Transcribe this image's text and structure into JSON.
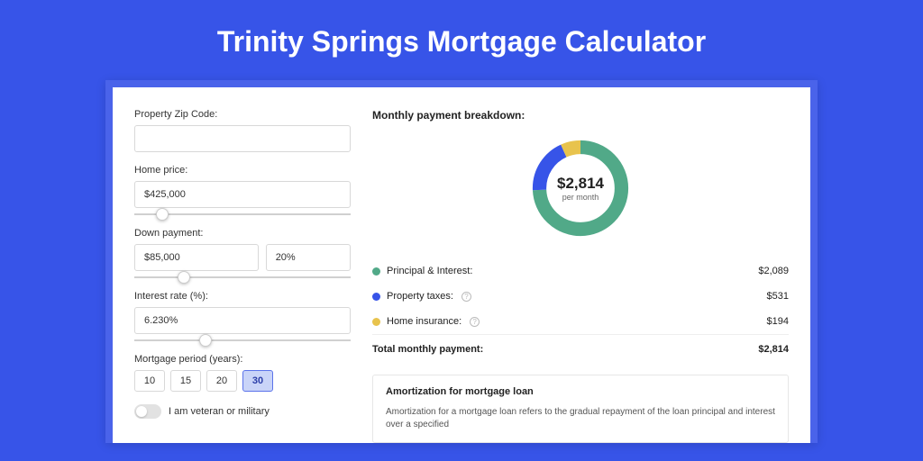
{
  "page": {
    "title": "Trinity Springs Mortgage Calculator",
    "background_color": "#3754e8",
    "card_outer_color": "#4a63ea"
  },
  "form": {
    "zip_label": "Property Zip Code:",
    "zip_value": "",
    "home_price_label": "Home price:",
    "home_price_value": "$425,000",
    "home_price_slider_percent": 10,
    "down_payment_label": "Down payment:",
    "down_payment_value": "$85,000",
    "down_payment_percent": "20%",
    "down_payment_slider_percent": 20,
    "interest_label": "Interest rate (%):",
    "interest_value": "6.230%",
    "interest_slider_percent": 30,
    "period_label": "Mortgage period (years):",
    "periods": [
      {
        "label": "10",
        "selected": false
      },
      {
        "label": "15",
        "selected": false
      },
      {
        "label": "20",
        "selected": false
      },
      {
        "label": "30",
        "selected": true
      }
    ],
    "veteran_label": "I am veteran or military",
    "veteran_on": false
  },
  "breakdown": {
    "title": "Monthly payment breakdown:",
    "donut": {
      "amount": "$2,814",
      "sub": "per month",
      "segments": [
        {
          "name": "principal_interest",
          "color": "#51a988",
          "percent": 74.2
        },
        {
          "name": "property_taxes",
          "color": "#3754e8",
          "percent": 18.9
        },
        {
          "name": "home_insurance",
          "color": "#e8c34d",
          "percent": 6.9
        }
      ],
      "stroke_width": 16
    },
    "items": [
      {
        "label": "Principal & Interest:",
        "color": "#51a988",
        "value": "$2,089",
        "has_help": false
      },
      {
        "label": "Property taxes:",
        "color": "#3754e8",
        "value": "$531",
        "has_help": true
      },
      {
        "label": "Home insurance:",
        "color": "#e8c34d",
        "value": "$194",
        "has_help": true
      }
    ],
    "total_label": "Total monthly payment:",
    "total_value": "$2,814"
  },
  "amortization": {
    "title": "Amortization for mortgage loan",
    "text": "Amortization for a mortgage loan refers to the gradual repayment of the loan principal and interest over a specified"
  }
}
